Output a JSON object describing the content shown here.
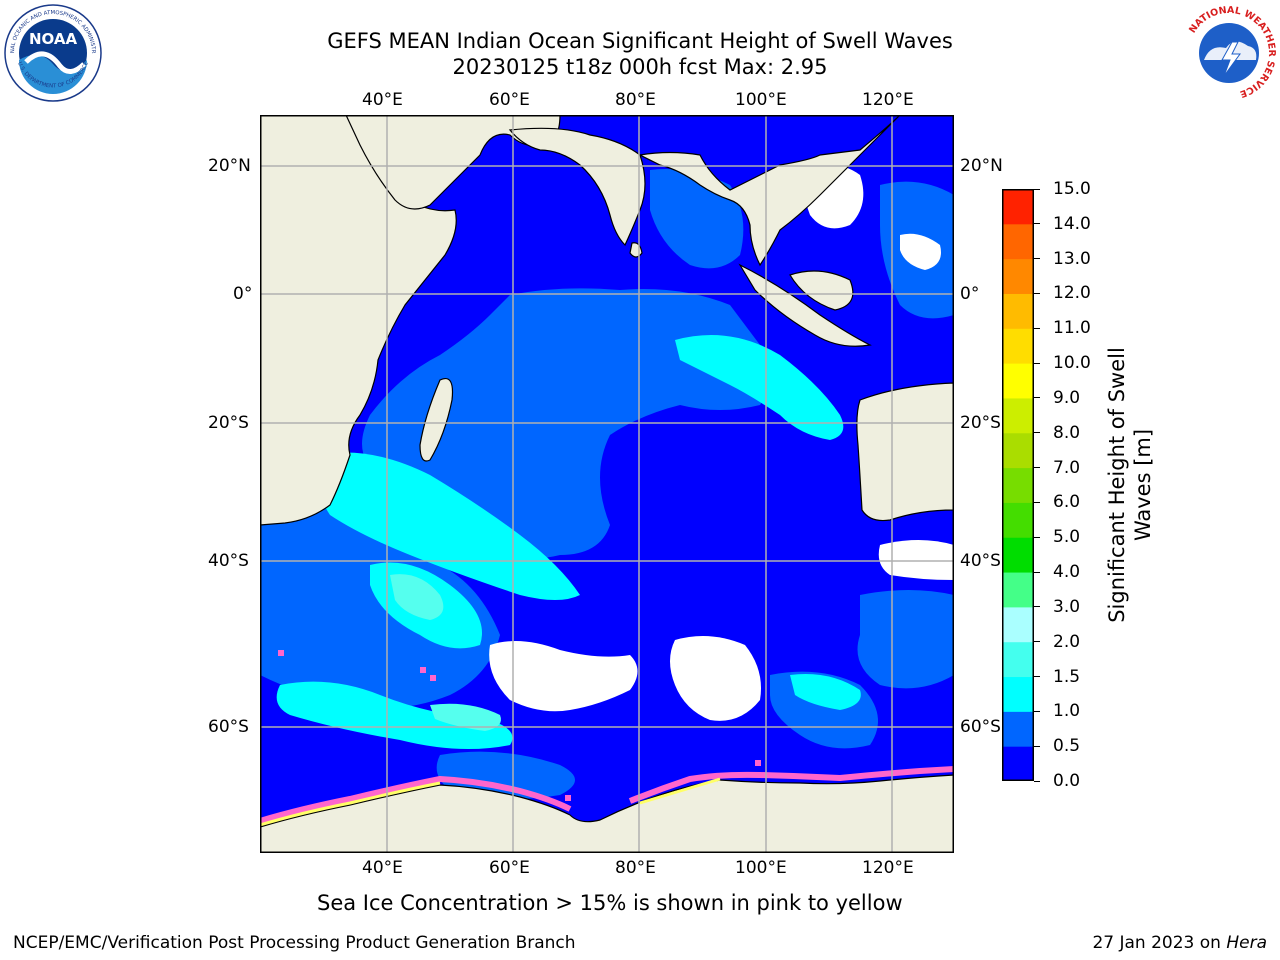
{
  "title": {
    "line1": "GEFS MEAN Indian Ocean Significant Height of Swell Waves",
    "line2": "20230125 t18z 000h fcst   Max: 2.95"
  },
  "logos": {
    "noaa_text": "NOAA",
    "noaa_ring_top": "NATIONAL OCEANIC AND ATMOSPHERIC ADMINISTRATION",
    "noaa_ring_bottom": "U.S. DEPARTMENT OF COMMERCE",
    "nws_ring": "NATIONAL WEATHER SERVICE"
  },
  "map": {
    "lon_labels": [
      "40°E",
      "60°E",
      "80°E",
      "100°E",
      "120°E"
    ],
    "lat_labels": [
      "20°N",
      "0°",
      "20°S",
      "40°S",
      "60°S"
    ],
    "colors": {
      "land": "#efefdf",
      "ice_free_white": "#ffffff",
      "grid": "#b0b0b0",
      "sea_ice_pink": "#ff66cc",
      "sea_ice_yellow": "#ffff66"
    }
  },
  "colorbar": {
    "label": "Significant Height of Swell Waves [m]",
    "label_line1": "Significant Height of Swell",
    "label_line2": "Waves [m]",
    "ticks": [
      "0.0",
      "0.5",
      "1.0",
      "1.5",
      "2.0",
      "3.0",
      "4.0",
      "5.0",
      "6.0",
      "7.0",
      "8.0",
      "9.0",
      "10.0",
      "11.0",
      "12.0",
      "13.0",
      "14.0",
      "15.0"
    ],
    "colors": [
      "#0000ff",
      "#0066ff",
      "#00ffff",
      "#44ffee",
      "#aaffff",
      "#44ff88",
      "#00dd00",
      "#44dd00",
      "#77dd00",
      "#aadd00",
      "#ccee00",
      "#ffff00",
      "#ffdd00",
      "#ffbb00",
      "#ff8800",
      "#ff6600",
      "#ff2200"
    ]
  },
  "annotation": "Sea Ice Concentration > 15% is shown in pink to yellow",
  "footer": {
    "left": "NCEP/EMC/Verification Post Processing Product Generation Branch",
    "date": "27 Jan 2023 on ",
    "machine": "Hera"
  }
}
